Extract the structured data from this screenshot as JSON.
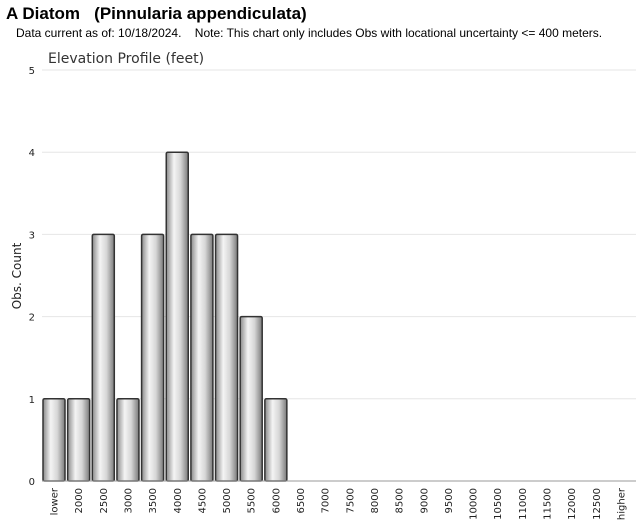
{
  "page": {
    "title": "A Diatom   (Pinnularia appendiculata)",
    "note": "Data current as of: 10/18/2024.    Note: This chart only includes Obs with locational uncertainty <= 400 meters."
  },
  "chart_data": {
    "type": "bar",
    "title": "Elevation Profile (feet)",
    "xlabel": "",
    "ylabel": "Obs. Count",
    "ylim": [
      0,
      5
    ],
    "yticks": [
      0,
      1,
      2,
      3,
      4,
      5
    ],
    "grid": true,
    "legend": "none",
    "categories": [
      "lower",
      "2000",
      "2500",
      "3000",
      "3500",
      "4000",
      "4500",
      "5000",
      "5500",
      "6000",
      "6500",
      "7000",
      "7500",
      "8000",
      "8500",
      "9000",
      "9500",
      "10000",
      "10500",
      "11000",
      "11500",
      "12000",
      "12500",
      "higher"
    ],
    "values": [
      1,
      1,
      3,
      1,
      3,
      4,
      3,
      3,
      2,
      1,
      0,
      0,
      0,
      0,
      0,
      0,
      0,
      0,
      0,
      0,
      0,
      0,
      0,
      0
    ],
    "bar_color": "#c8c8c8",
    "bar_edge_color": "#333333",
    "grid_color": "#e6e6e6"
  }
}
